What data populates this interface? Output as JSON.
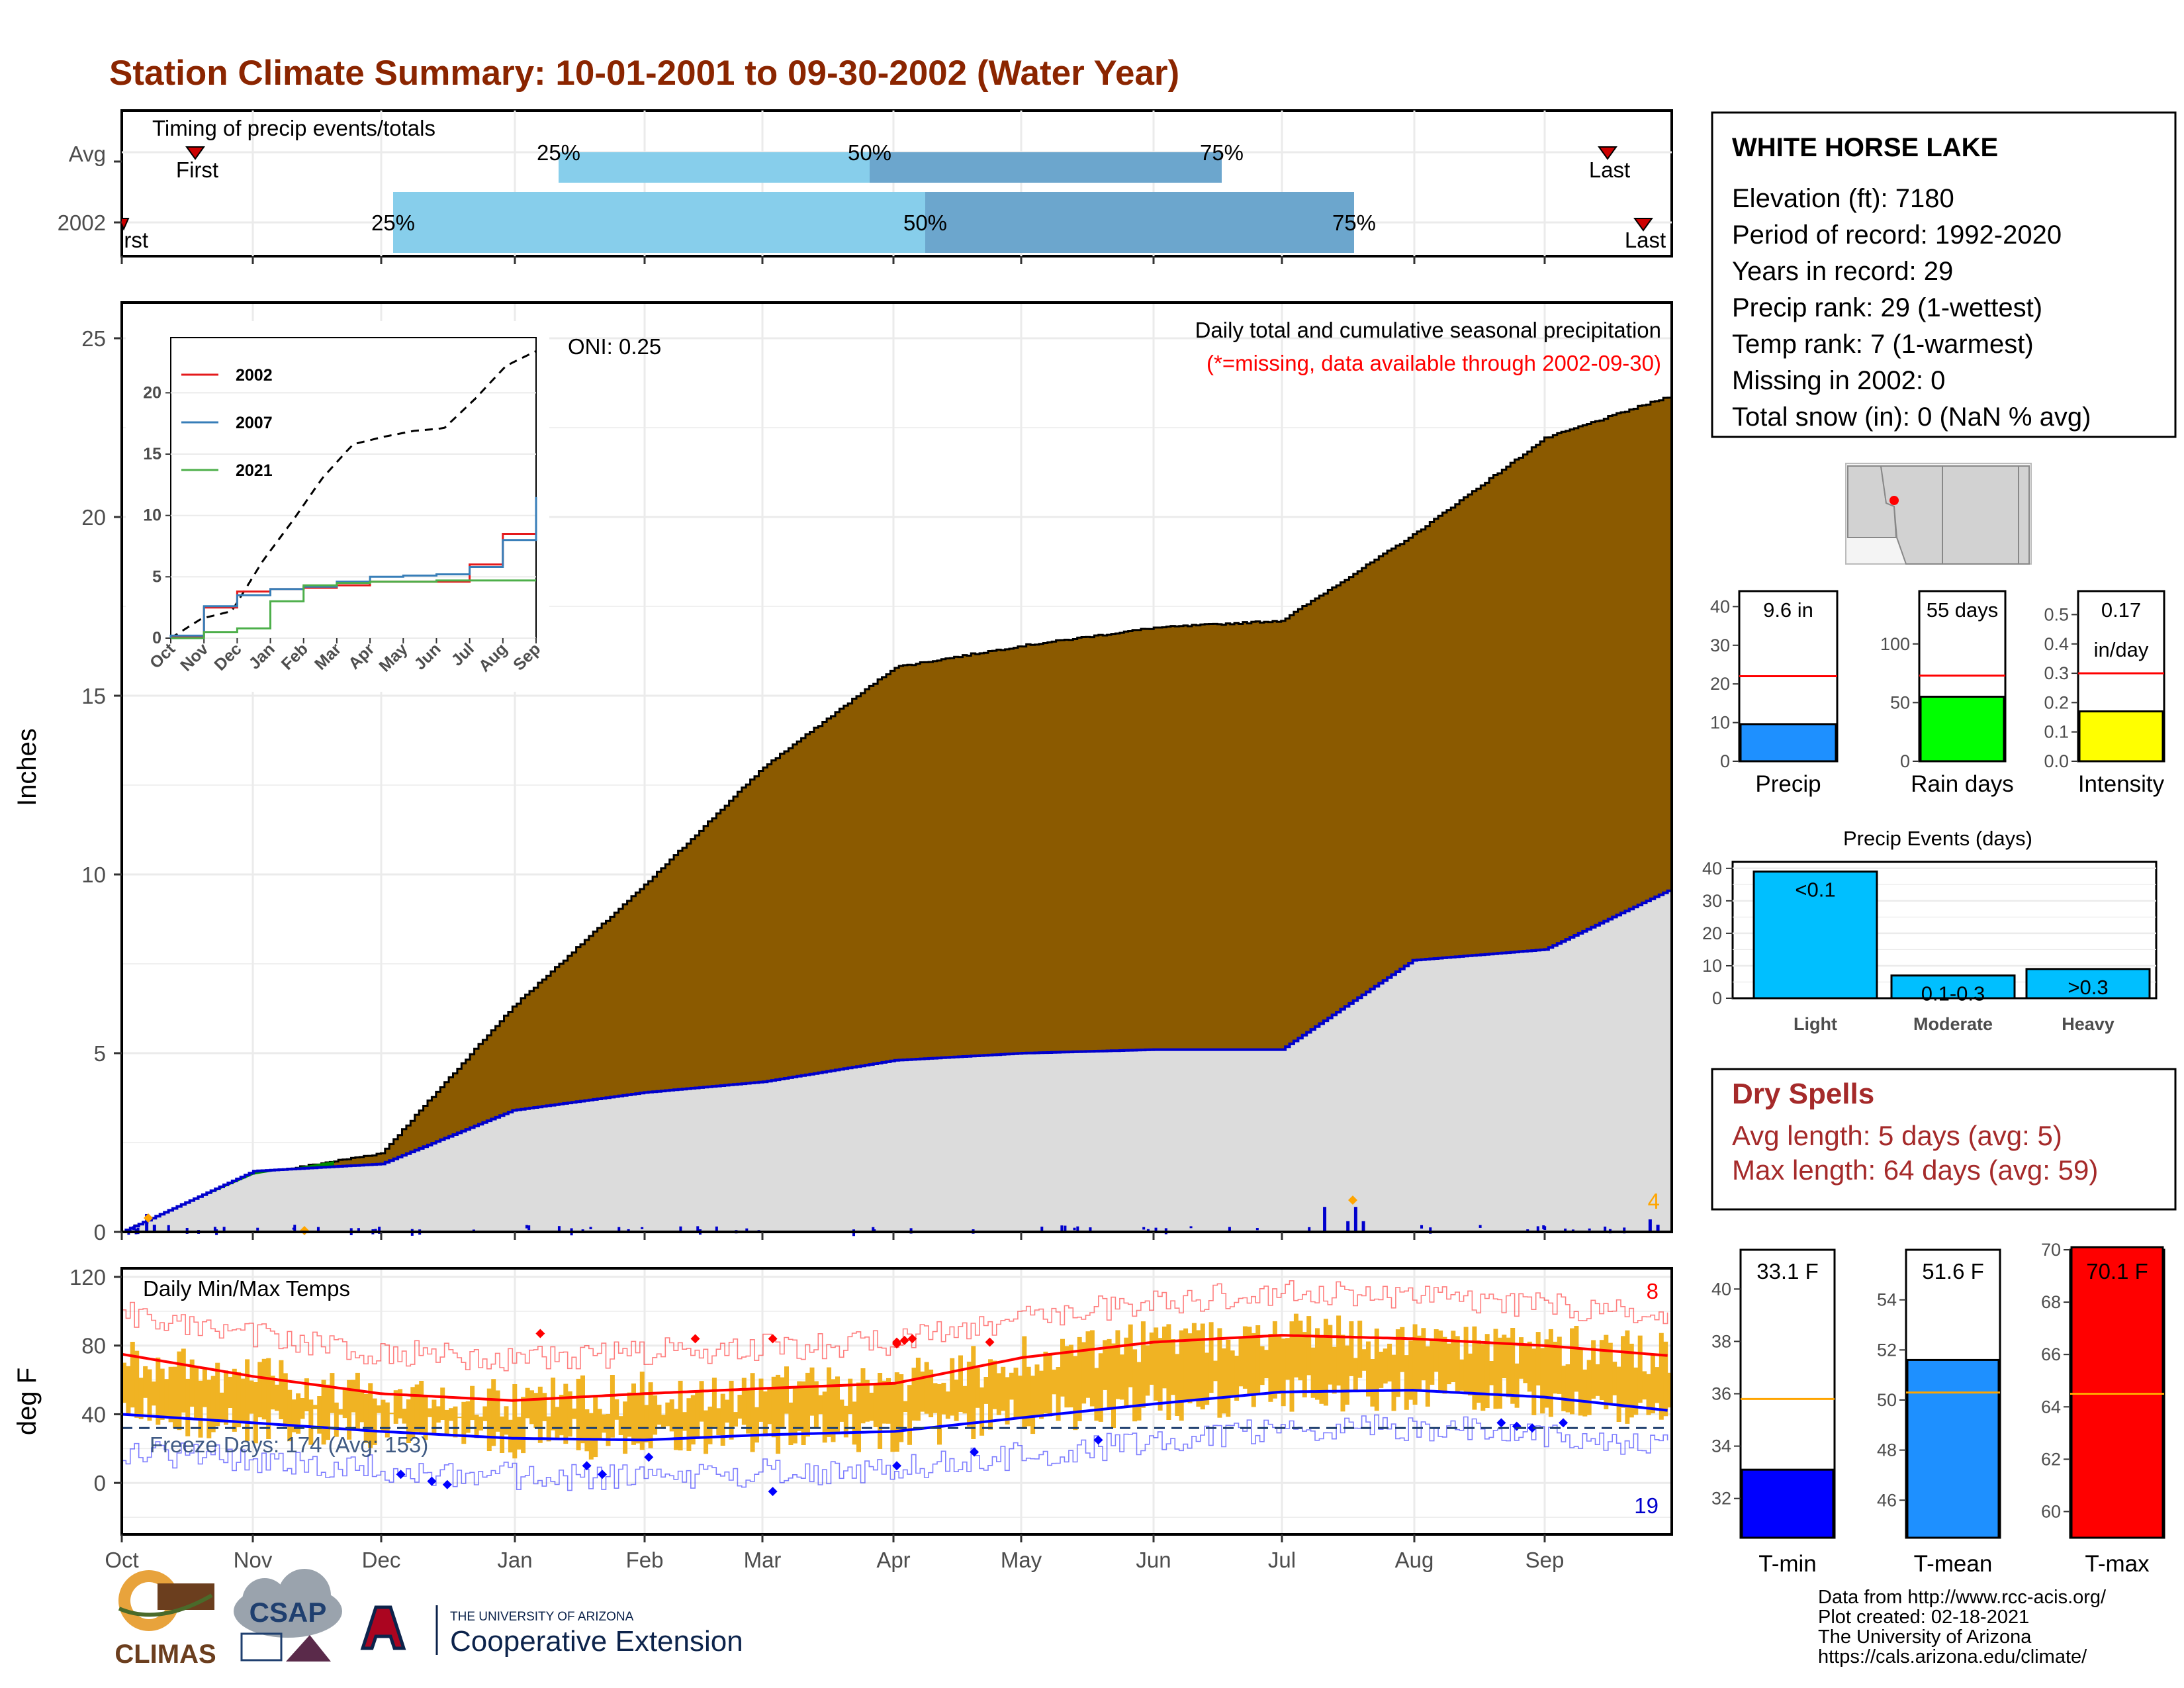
{
  "title": "Station Climate Summary: 10-01-2001 to 09-30-2002 (Water Year)",
  "colors": {
    "title": "#8B2500",
    "light_blue": "#87CEEB",
    "mid_blue": "#6CA6CD",
    "cum_fill": "#8B5A00",
    "avg_fill": "#DCDCDC",
    "precip_line": "#0000CD",
    "excess_green": "#008B00",
    "temp_bar": "#F0B323",
    "tmax_line": "#FF0000",
    "tmin_line": "#0000FF",
    "dry_spells": "#A52A2A"
  },
  "timing": {
    "title": "Timing of precip events/totals",
    "rows": [
      {
        "label": "Avg",
        "first_label": "First",
        "last_label": "Last",
        "q25": "25%",
        "q50": "50%",
        "q75": "75%"
      },
      {
        "label": "2002",
        "first_label": "First",
        "last_label": "Last",
        "q25": "25%",
        "q50": "50%",
        "q75": "75%"
      }
    ]
  },
  "main": {
    "title": "Daily total and cumulative seasonal precipitation",
    "subtitle": "(*=missing, data available through 2002-09-30)",
    "oni": "ONI: 0.25",
    "ylabel": "Inches",
    "corner_count": "4",
    "y_ticks": [
      "0",
      "5",
      "10",
      "15",
      "20",
      "25"
    ]
  },
  "inset": {
    "legend": [
      "2002",
      "2007",
      "2021"
    ],
    "y_ticks": [
      "0",
      "5",
      "10",
      "15",
      "20"
    ],
    "x_ticks": [
      "Oct",
      "Nov",
      "Dec",
      "Jan",
      "Feb",
      "Mar",
      "Apr",
      "May",
      "Jun",
      "Jul",
      "Aug",
      "Sep"
    ]
  },
  "temps": {
    "title": "Daily Min/Max Temps",
    "ylabel": "deg F",
    "y_ticks": [
      "0",
      "40",
      "80",
      "120"
    ],
    "freeze_label": "Freeze Days: 174 (Avg: 153)",
    "count_high": "8",
    "count_low": "19"
  },
  "months": [
    "Oct",
    "Nov",
    "Dec",
    "Jan",
    "Feb",
    "Mar",
    "Apr",
    "May",
    "Jun",
    "Jul",
    "Aug",
    "Sep"
  ],
  "station": {
    "name": "WHITE HORSE LAKE",
    "lines": [
      "Elevation (ft): 7180",
      "Period of record: 1992-2020",
      "Years in record: 29",
      "Precip rank: 29 (1-wettest)",
      "Temp rank: 7 (1-warmest)",
      "Missing in 2002: 0",
      "Total snow (in): 0 (NaN % avg)"
    ]
  },
  "mini_bars": [
    {
      "label": "Precip",
      "value_label": "9.6 in",
      "value": 9.6,
      "avg": 22,
      "max": 44,
      "ticks": [
        "0",
        "10",
        "20",
        "30",
        "40"
      ],
      "color": "#1E90FF"
    },
    {
      "label": "Rain days",
      "value_label": "55 days",
      "value": 55,
      "avg": 73,
      "max": 145,
      "ticks": [
        "0",
        "50",
        "100"
      ],
      "color": "#00FF00"
    },
    {
      "label": "Intensity",
      "value_label": "0.17",
      "value_label2": "in/day",
      "value": 0.17,
      "avg": 0.3,
      "max": 0.58,
      "ticks": [
        "0.0",
        "0.1",
        "0.2",
        "0.3",
        "0.4",
        "0.5"
      ],
      "color": "#FFFF00"
    }
  ],
  "events": {
    "title": "Precip Events (days)",
    "categories": [
      "Light",
      "Moderate",
      "Heavy"
    ],
    "labels": [
      "<0.1",
      "0.1-0.3",
      ">0.3"
    ],
    "values": [
      39,
      7,
      9
    ],
    "ticks": [
      "0",
      "10",
      "20",
      "30",
      "40"
    ],
    "color": "#00BFFF"
  },
  "dry_spells": {
    "title": "Dry Spells",
    "lines": [
      "Avg length: 5 days (avg: 5)",
      "Max length: 64 days (avg: 59)"
    ]
  },
  "temp_bars": [
    {
      "label": "T-min",
      "value_label": "33.1 F",
      "value": 33.1,
      "avg": 35.8,
      "min": 30.5,
      "max": 41.5,
      "ticks": [
        "32",
        "34",
        "36",
        "38",
        "40"
      ],
      "color": "#0000FF"
    },
    {
      "label": "T-mean",
      "value_label": "51.6 F",
      "value": 51.6,
      "avg": 50.3,
      "min": 44.5,
      "max": 56,
      "ticks": [
        "46",
        "48",
        "50",
        "52",
        "54"
      ],
      "color": "#1E90FF"
    },
    {
      "label": "T-max",
      "value_label": "70.1 F",
      "value": 70.1,
      "avg": 64.5,
      "min": 59,
      "max": 70,
      "ticks": [
        "60",
        "62",
        "64",
        "66",
        "68",
        "70"
      ],
      "color": "#FF0000"
    }
  ],
  "credits": [
    "Data from http://www.rcc-acis.org/",
    "Plot created: 02-18-2021",
    "The University of Arizona",
    "https://cals.arizona.edu/climate/"
  ],
  "logos": {
    "climas": "CLIMAS",
    "csap": "CSAP",
    "ua_small": "THE UNIVERSITY OF ARIZONA",
    "ua_big": "Cooperative Extension"
  },
  "chart_data": [
    {
      "type": "area",
      "title": "Daily total and cumulative seasonal precipitation",
      "ylabel": "Inches",
      "ylim": [
        0,
        26
      ],
      "x": [
        "Oct",
        "Nov",
        "Dec",
        "Jan",
        "Feb",
        "Mar",
        "Apr",
        "May",
        "Jun",
        "Jul",
        "Aug",
        "Sep",
        "Sep 30"
      ],
      "series": [
        {
          "values": [
            0,
            1.6,
            2.2,
            6.3,
            9.7,
            13.0,
            15.8,
            16.4,
            16.9,
            17.1,
            19.5,
            22.2,
            23.4
          ]
        },
        {
          "values": [
            0,
            1.7,
            1.9,
            3.4,
            3.9,
            4.2,
            4.8,
            5.0,
            5.1,
            5.1,
            7.6,
            7.9,
            9.6
          ]
        }
      ]
    },
    {
      "type": "line",
      "title": "Daily Min/Max Temps",
      "ylabel": "deg F",
      "x": [
        "Oct",
        "Nov",
        "Dec",
        "Jan",
        "Feb",
        "Mar",
        "Apr",
        "May",
        "Jun",
        "Jul",
        "Aug",
        "Sep",
        "Sep 30"
      ],
      "series": [
        {
          "values": [
            75,
            62,
            52,
            48,
            52,
            55,
            58,
            73,
            82,
            86,
            84,
            80,
            74
          ]
        },
        {
          "values": [
            40,
            35,
            30,
            26,
            25,
            28,
            30,
            38,
            46,
            53,
            54,
            50,
            42
          ]
        }
      ]
    },
    {
      "type": "line",
      "x": [
        "Oct",
        "Nov",
        "Dec",
        "Jan",
        "Feb",
        "Mar",
        "Apr",
        "May",
        "Jun",
        "Jul",
        "Aug",
        "Sep"
      ],
      "series": [
        {
          "name": "2002",
          "values": [
            0.1,
            2.5,
            3.8,
            4.0,
            4.1,
            4.3,
            4.6,
            4.6,
            4.6,
            6.0,
            8.5,
            9.6
          ]
        },
        {
          "name": "2007",
          "values": [
            0.2,
            2.6,
            3.5,
            4.0,
            4.2,
            4.6,
            5.0,
            5.1,
            5.2,
            5.8,
            8.0,
            11.5
          ]
        },
        {
          "name": "2021",
          "values": [
            0.0,
            0.5,
            0.8,
            3.0,
            4.3,
            4.5,
            4.6,
            4.6,
            4.7,
            4.7,
            4.7,
            4.7
          ]
        }
      ]
    },
    {
      "type": "bar",
      "title": "Precip Events (days)",
      "categories": [
        "Light",
        "Moderate",
        "Heavy"
      ],
      "values": [
        39,
        7,
        9
      ],
      "ylim": [
        0,
        42
      ]
    }
  ]
}
